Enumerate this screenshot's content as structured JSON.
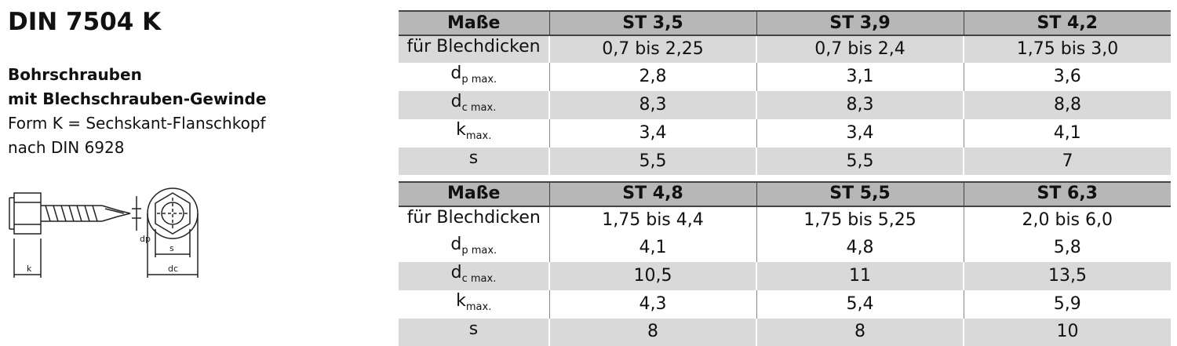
{
  "header": {
    "title": "DIN 7504 K",
    "subtitle_bold_line1": "Bohrschrauben",
    "subtitle_bold_line2": "mit Blechschrauben-Gewinde",
    "subtitle_line3": "Form K = Sechskant-Flanschkopf",
    "subtitle_line4": "nach DIN 6928"
  },
  "drawing": {
    "labels": {
      "k": "k",
      "dp": "dp",
      "s": "s",
      "dc": "dc"
    }
  },
  "tables": [
    {
      "header": [
        "Maße",
        "ST 3,5",
        "ST 3,9",
        "ST 4,2"
      ],
      "rows": [
        {
          "label": "für Blechdicken",
          "sub": "",
          "values": [
            "0,7 bis 2,25",
            "0,7 bis 2,4",
            "1,75 bis 3,0"
          ]
        },
        {
          "label": "d",
          "sub": "p max.",
          "values": [
            "2,8",
            "3,1",
            "3,6"
          ]
        },
        {
          "label": "d",
          "sub": "c max.",
          "values": [
            "8,3",
            "8,3",
            "8,8"
          ]
        },
        {
          "label": "k",
          "sub": "max.",
          "values": [
            "3,4",
            "3,4",
            "4,1"
          ]
        },
        {
          "label": "s",
          "sub": "",
          "values": [
            "5,5",
            "5,5",
            "7"
          ]
        }
      ]
    },
    {
      "header": [
        "Maße",
        "ST 4,8",
        "ST 5,5",
        "ST 6,3"
      ],
      "rows": [
        {
          "label": "für Blechdicken",
          "sub": "",
          "values": [
            "1,75 bis 4,4",
            "1,75 bis 5,25",
            "2,0 bis 6,0"
          ]
        },
        {
          "label": "d",
          "sub": "p max.",
          "values": [
            "4,1",
            "4,8",
            "5,8"
          ]
        },
        {
          "label": "d",
          "sub": "c max.",
          "values": [
            "10,5",
            "11",
            "13,5"
          ]
        },
        {
          "label": "k",
          "sub": "max.",
          "values": [
            "4,3",
            "5,4",
            "5,9"
          ]
        },
        {
          "label": "s",
          "sub": "",
          "values": [
            "8",
            "8",
            "10"
          ]
        }
      ]
    }
  ]
}
